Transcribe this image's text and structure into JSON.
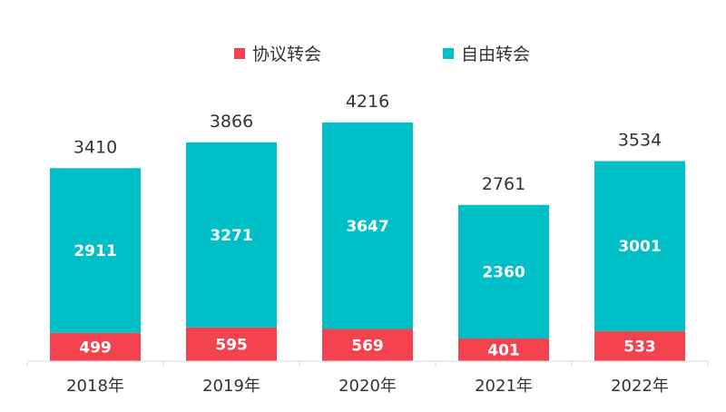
{
  "chart_data": {
    "type": "bar",
    "stacked": true,
    "categories": [
      "2018年",
      "2019年",
      "2020年",
      "2021年",
      "2022年"
    ],
    "series": [
      {
        "name": "协议转会",
        "color": "#f5424f",
        "values": [
          499,
          595,
          569,
          401,
          533
        ]
      },
      {
        "name": "自由转会",
        "color": "#00bfc6",
        "values": [
          2911,
          3271,
          3647,
          2360,
          3001
        ]
      }
    ],
    "totals": [
      3410,
      3866,
      4216,
      2761,
      3534
    ],
    "legend_position": "top",
    "grid": false,
    "ylim": [
      0,
      4216
    ]
  }
}
